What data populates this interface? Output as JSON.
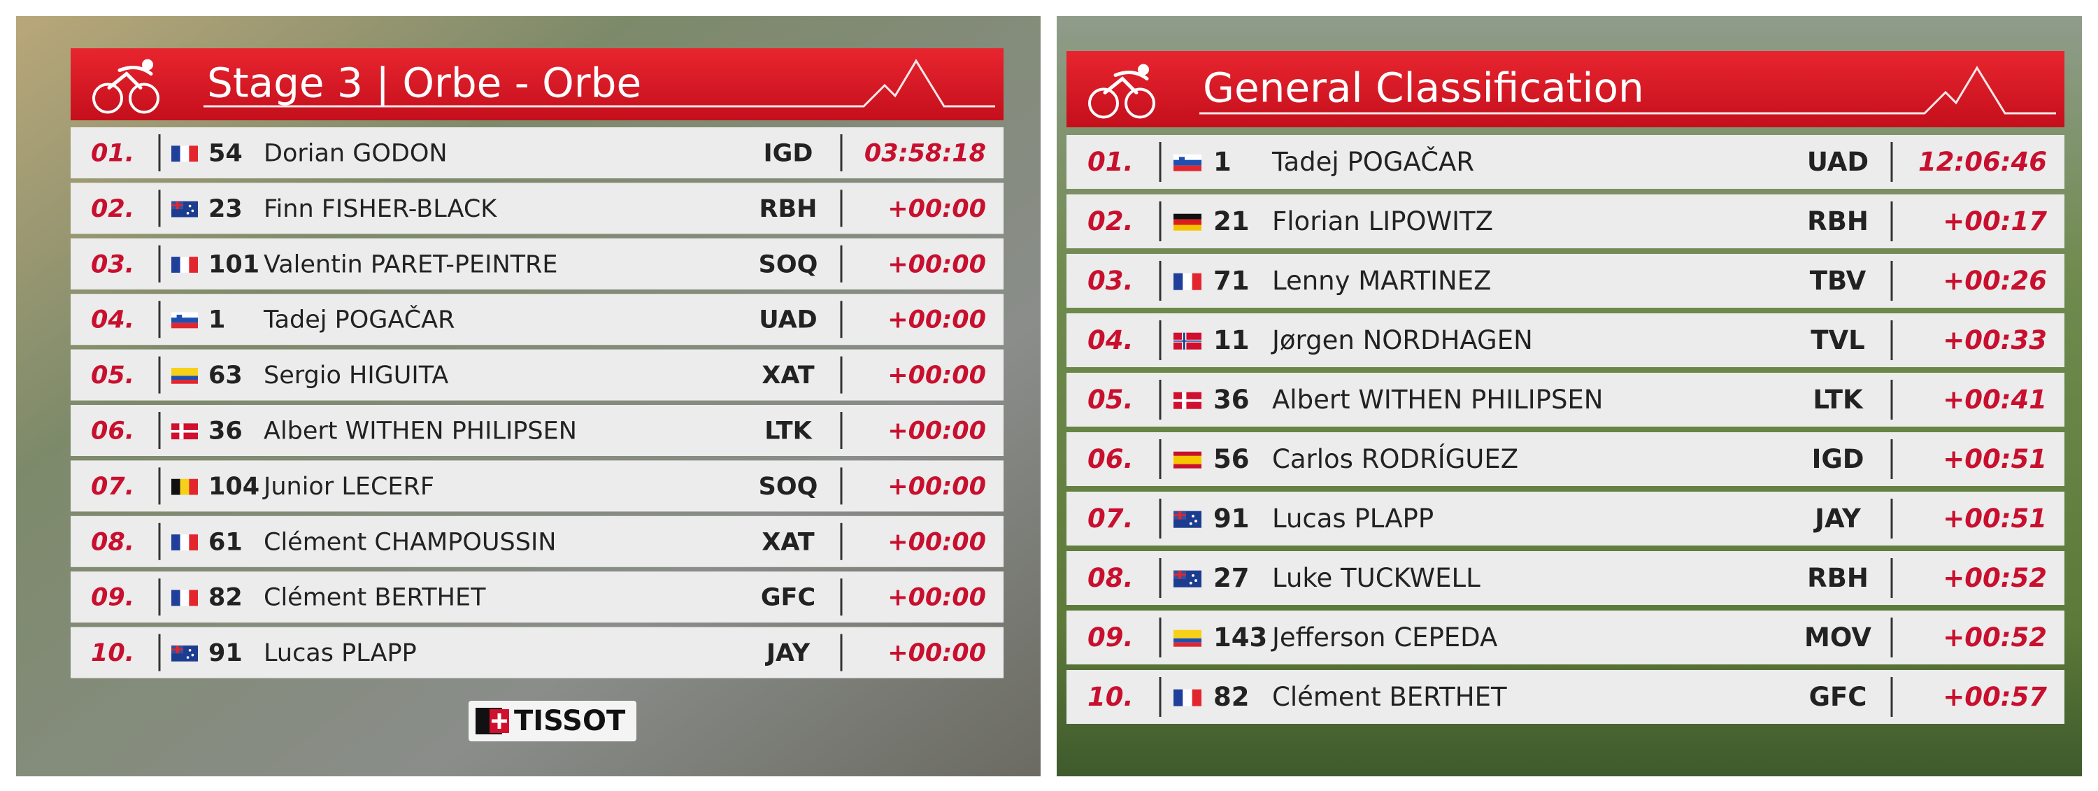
{
  "panels": [
    {
      "title": "Stage 3 | Orbe - Orbe",
      "rows": [
        [
          "01.",
          "54",
          "Dorian GODON",
          "IGD",
          "03:58:18"
        ],
        [
          "02.",
          "23",
          "Finn FISHER-BLACK",
          "RBH",
          "+00:00"
        ],
        [
          "03.",
          "101",
          "Valentin PARET-PEINTRE",
          "SOQ",
          "+00:00"
        ],
        [
          "04.",
          "1",
          "Tadej POGAČAR",
          "UAD",
          "+00:00"
        ],
        [
          "05.",
          "63",
          "Sergio HIGUITA",
          "XAT",
          "+00:00"
        ],
        [
          "06.",
          "36",
          "Albert WITHEN PHILIPSEN",
          "LTK",
          "+00:00"
        ],
        [
          "07.",
          "104",
          "Junior LECERF",
          "SOQ",
          "+00:00"
        ],
        [
          "08.",
          "61",
          "Clément CHAMPOUSSIN",
          "XAT",
          "+00:00"
        ],
        [
          "09.",
          "82",
          "Clément BERTHET",
          "GFC",
          "+00:00"
        ],
        [
          "10.",
          "91",
          "Lucas PLAPP",
          "JAY",
          "+00:00"
        ]
      ],
      "logo": "TISSOT"
    },
    {
      "title": "General Classification",
      "rows": [
        [
          "01.",
          "1",
          "Tadej POGAČAR",
          "UAD",
          "12:06:46"
        ],
        [
          "02.",
          "21",
          "Florian LIPOWITZ",
          "RBH",
          "+00:17"
        ],
        [
          "03.",
          "71",
          "Lenny MARTINEZ",
          "TBV",
          "+00:26"
        ],
        [
          "04.",
          "11",
          "Jørgen NORDHAGEN",
          "TVL",
          "+00:33"
        ],
        [
          "05.",
          "36",
          "Albert WITHEN PHILIPSEN",
          "LTK",
          "+00:41"
        ],
        [
          "06.",
          "56",
          "Carlos RODRÍGUEZ",
          "IGD",
          "+00:51"
        ],
        [
          "07.",
          "91",
          "Lucas PLAPP",
          "JAY",
          "+00:51"
        ],
        [
          "08.",
          "27",
          "Luke TUCKWELL",
          "RBH",
          "+00:52"
        ],
        [
          "09.",
          "143",
          "Jefferson CEPEDA",
          "MOV",
          "+00:52"
        ],
        [
          "10.",
          "82",
          "Clément BERTHET",
          "GFC",
          "+00:57"
        ]
      ]
    }
  ]
}
